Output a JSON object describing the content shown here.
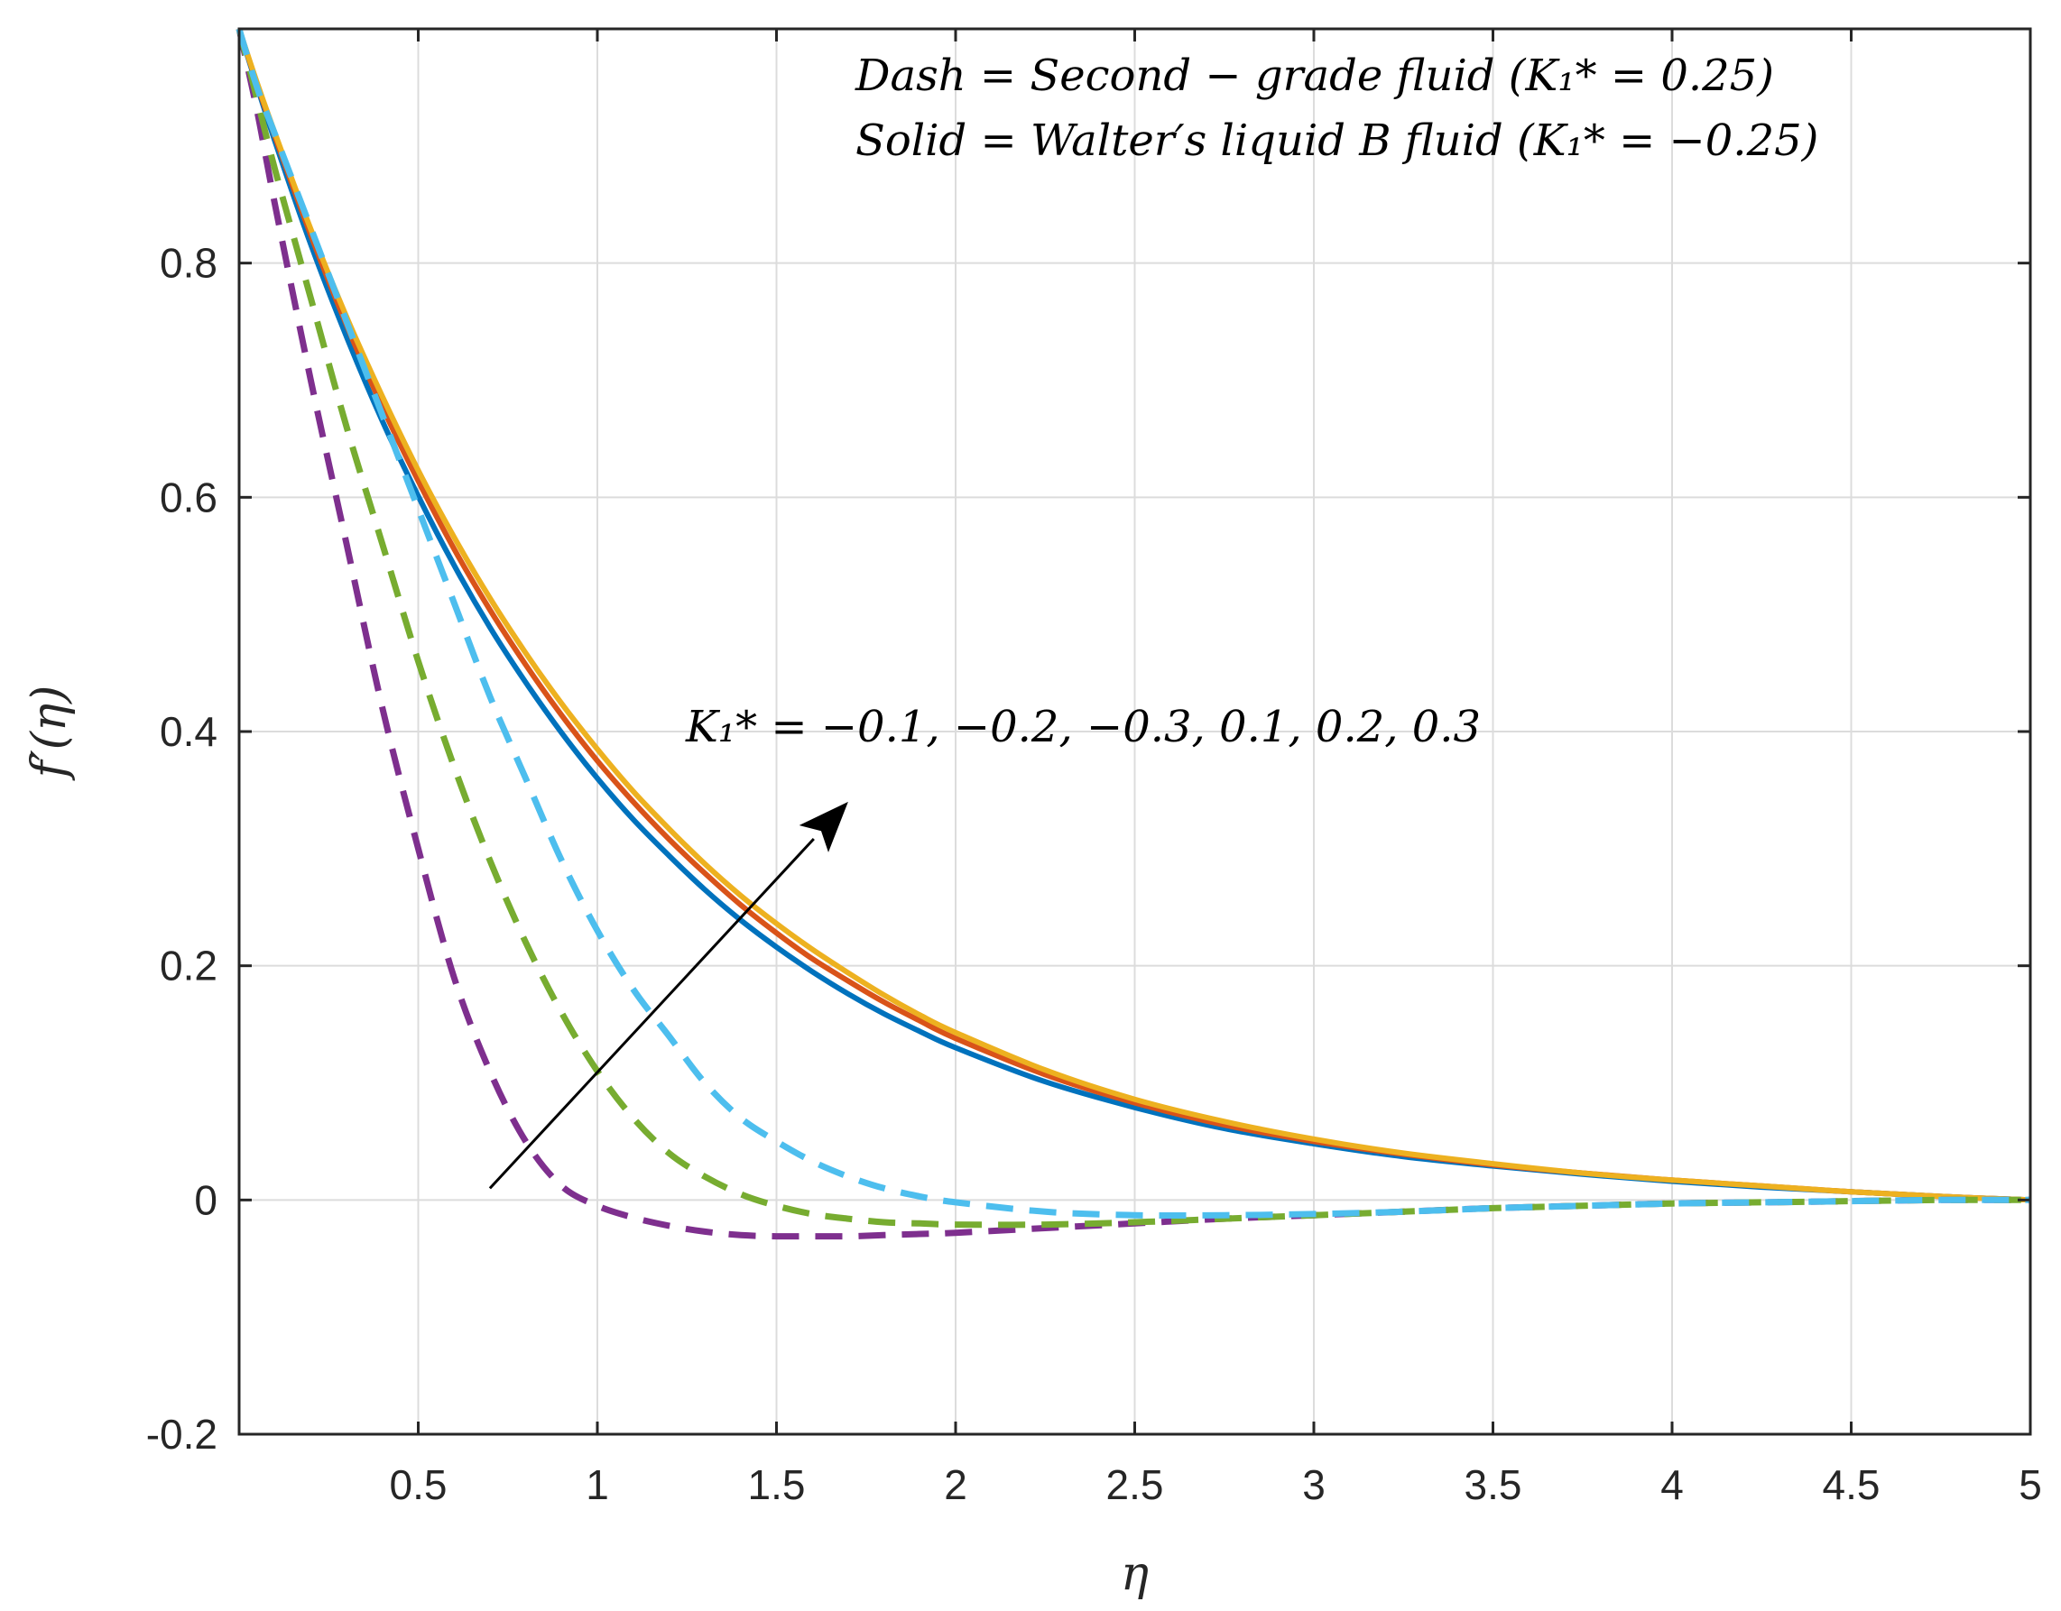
{
  "chart_data": {
    "type": "line",
    "xlabel": "η",
    "ylabel": "f′(η)",
    "xlim": [
      0,
      5
    ],
    "ylim": [
      -0.2,
      1
    ],
    "grid": true,
    "x_tick_labels": [
      "0.5",
      "1",
      "1.5",
      "2",
      "2.5",
      "3",
      "3.5",
      "4",
      "4.5",
      "5"
    ],
    "y_tick_labels": [
      "-0.2",
      "0",
      "0.2",
      "0.4",
      "0.6",
      "0.8"
    ],
    "annotations": {
      "dash_note": "Dash = Second − grade fluid (K₁* = 0.25)",
      "solid_note": "Solid = Walter′s liquid B fluid (K₁* = −0.25)",
      "arrow_label": "K₁* = −0.1, −0.2, −0.3, 0.1, 0.2, 0.3",
      "arrow_from": [
        0.7,
        0.01
      ],
      "arrow_to": [
        1.7,
        0.34
      ]
    },
    "x": [
      0,
      0.05,
      0.1,
      0.2,
      0.3,
      0.4,
      0.5,
      0.6,
      0.7,
      0.8,
      0.9,
      1.0,
      1.1,
      1.2,
      1.3,
      1.4,
      1.5,
      1.6,
      1.7,
      1.8,
      1.9,
      2.0,
      2.25,
      2.5,
      2.75,
      3.0,
      3.25,
      3.5,
      3.75,
      4.0,
      4.25,
      4.5,
      4.75,
      5.0
    ],
    "series": [
      {
        "name": "K1* = -0.1",
        "style": "solid",
        "color": "#0072BD",
        "values": [
          1.0,
          0.951,
          0.904,
          0.816,
          0.737,
          0.665,
          0.601,
          0.542,
          0.489,
          0.442,
          0.399,
          0.36,
          0.325,
          0.294,
          0.265,
          0.239,
          0.216,
          0.195,
          0.176,
          0.159,
          0.144,
          0.13,
          0.101,
          0.079,
          0.061,
          0.048,
          0.037,
          0.029,
          0.022,
          0.016,
          0.011,
          0.007,
          0.003,
          0.0
        ]
      },
      {
        "name": "K1* = -0.2",
        "style": "solid",
        "color": "#D95319",
        "values": [
          1.0,
          0.953,
          0.908,
          0.824,
          0.747,
          0.677,
          0.614,
          0.556,
          0.504,
          0.457,
          0.414,
          0.375,
          0.34,
          0.308,
          0.279,
          0.252,
          0.228,
          0.206,
          0.187,
          0.169,
          0.153,
          0.138,
          0.107,
          0.083,
          0.064,
          0.05,
          0.039,
          0.03,
          0.023,
          0.017,
          0.012,
          0.007,
          0.003,
          0.0
        ]
      },
      {
        "name": "K1* = -0.3",
        "style": "solid",
        "color": "#EDB120",
        "values": [
          1.0,
          0.954,
          0.911,
          0.829,
          0.754,
          0.686,
          0.623,
          0.566,
          0.514,
          0.467,
          0.424,
          0.385,
          0.349,
          0.317,
          0.287,
          0.26,
          0.236,
          0.214,
          0.194,
          0.175,
          0.158,
          0.143,
          0.111,
          0.086,
          0.067,
          0.052,
          0.04,
          0.031,
          0.023,
          0.017,
          0.012,
          0.007,
          0.003,
          0.0
        ]
      },
      {
        "name": "K1* = 0.1",
        "style": "dash",
        "color": "#7E2F8E",
        "values": [
          1.0,
          0.93,
          0.85,
          0.7,
          0.56,
          0.42,
          0.3,
          0.19,
          0.11,
          0.05,
          0.012,
          -0.005,
          -0.015,
          -0.022,
          -0.027,
          -0.03,
          -0.031,
          -0.031,
          -0.031,
          -0.03,
          -0.029,
          -0.028,
          -0.024,
          -0.02,
          -0.016,
          -0.013,
          -0.01,
          -0.007,
          -0.005,
          -0.003,
          -0.002,
          -0.001,
          0.0,
          0.0
        ]
      },
      {
        "name": "K1* = 0.2",
        "style": "dash",
        "color": "#77AC30",
        "values": [
          1.0,
          0.94,
          0.88,
          0.77,
          0.66,
          0.56,
          0.46,
          0.37,
          0.29,
          0.22,
          0.16,
          0.11,
          0.07,
          0.04,
          0.02,
          0.005,
          -0.005,
          -0.012,
          -0.016,
          -0.019,
          -0.02,
          -0.021,
          -0.021,
          -0.019,
          -0.016,
          -0.013,
          -0.01,
          -0.007,
          -0.005,
          -0.003,
          -0.002,
          -0.001,
          0.0,
          0.0
        ]
      },
      {
        "name": "K1* = 0.3",
        "style": "dash",
        "color": "#4DBEEE",
        "values": [
          1.0,
          0.95,
          0.91,
          0.83,
          0.75,
          0.67,
          0.59,
          0.51,
          0.43,
          0.36,
          0.29,
          0.23,
          0.18,
          0.14,
          0.1,
          0.07,
          0.05,
          0.033,
          0.02,
          0.01,
          0.003,
          -0.002,
          -0.01,
          -0.013,
          -0.013,
          -0.012,
          -0.01,
          -0.007,
          -0.005,
          -0.003,
          -0.002,
          -0.001,
          0.0,
          0.0
        ]
      }
    ]
  }
}
